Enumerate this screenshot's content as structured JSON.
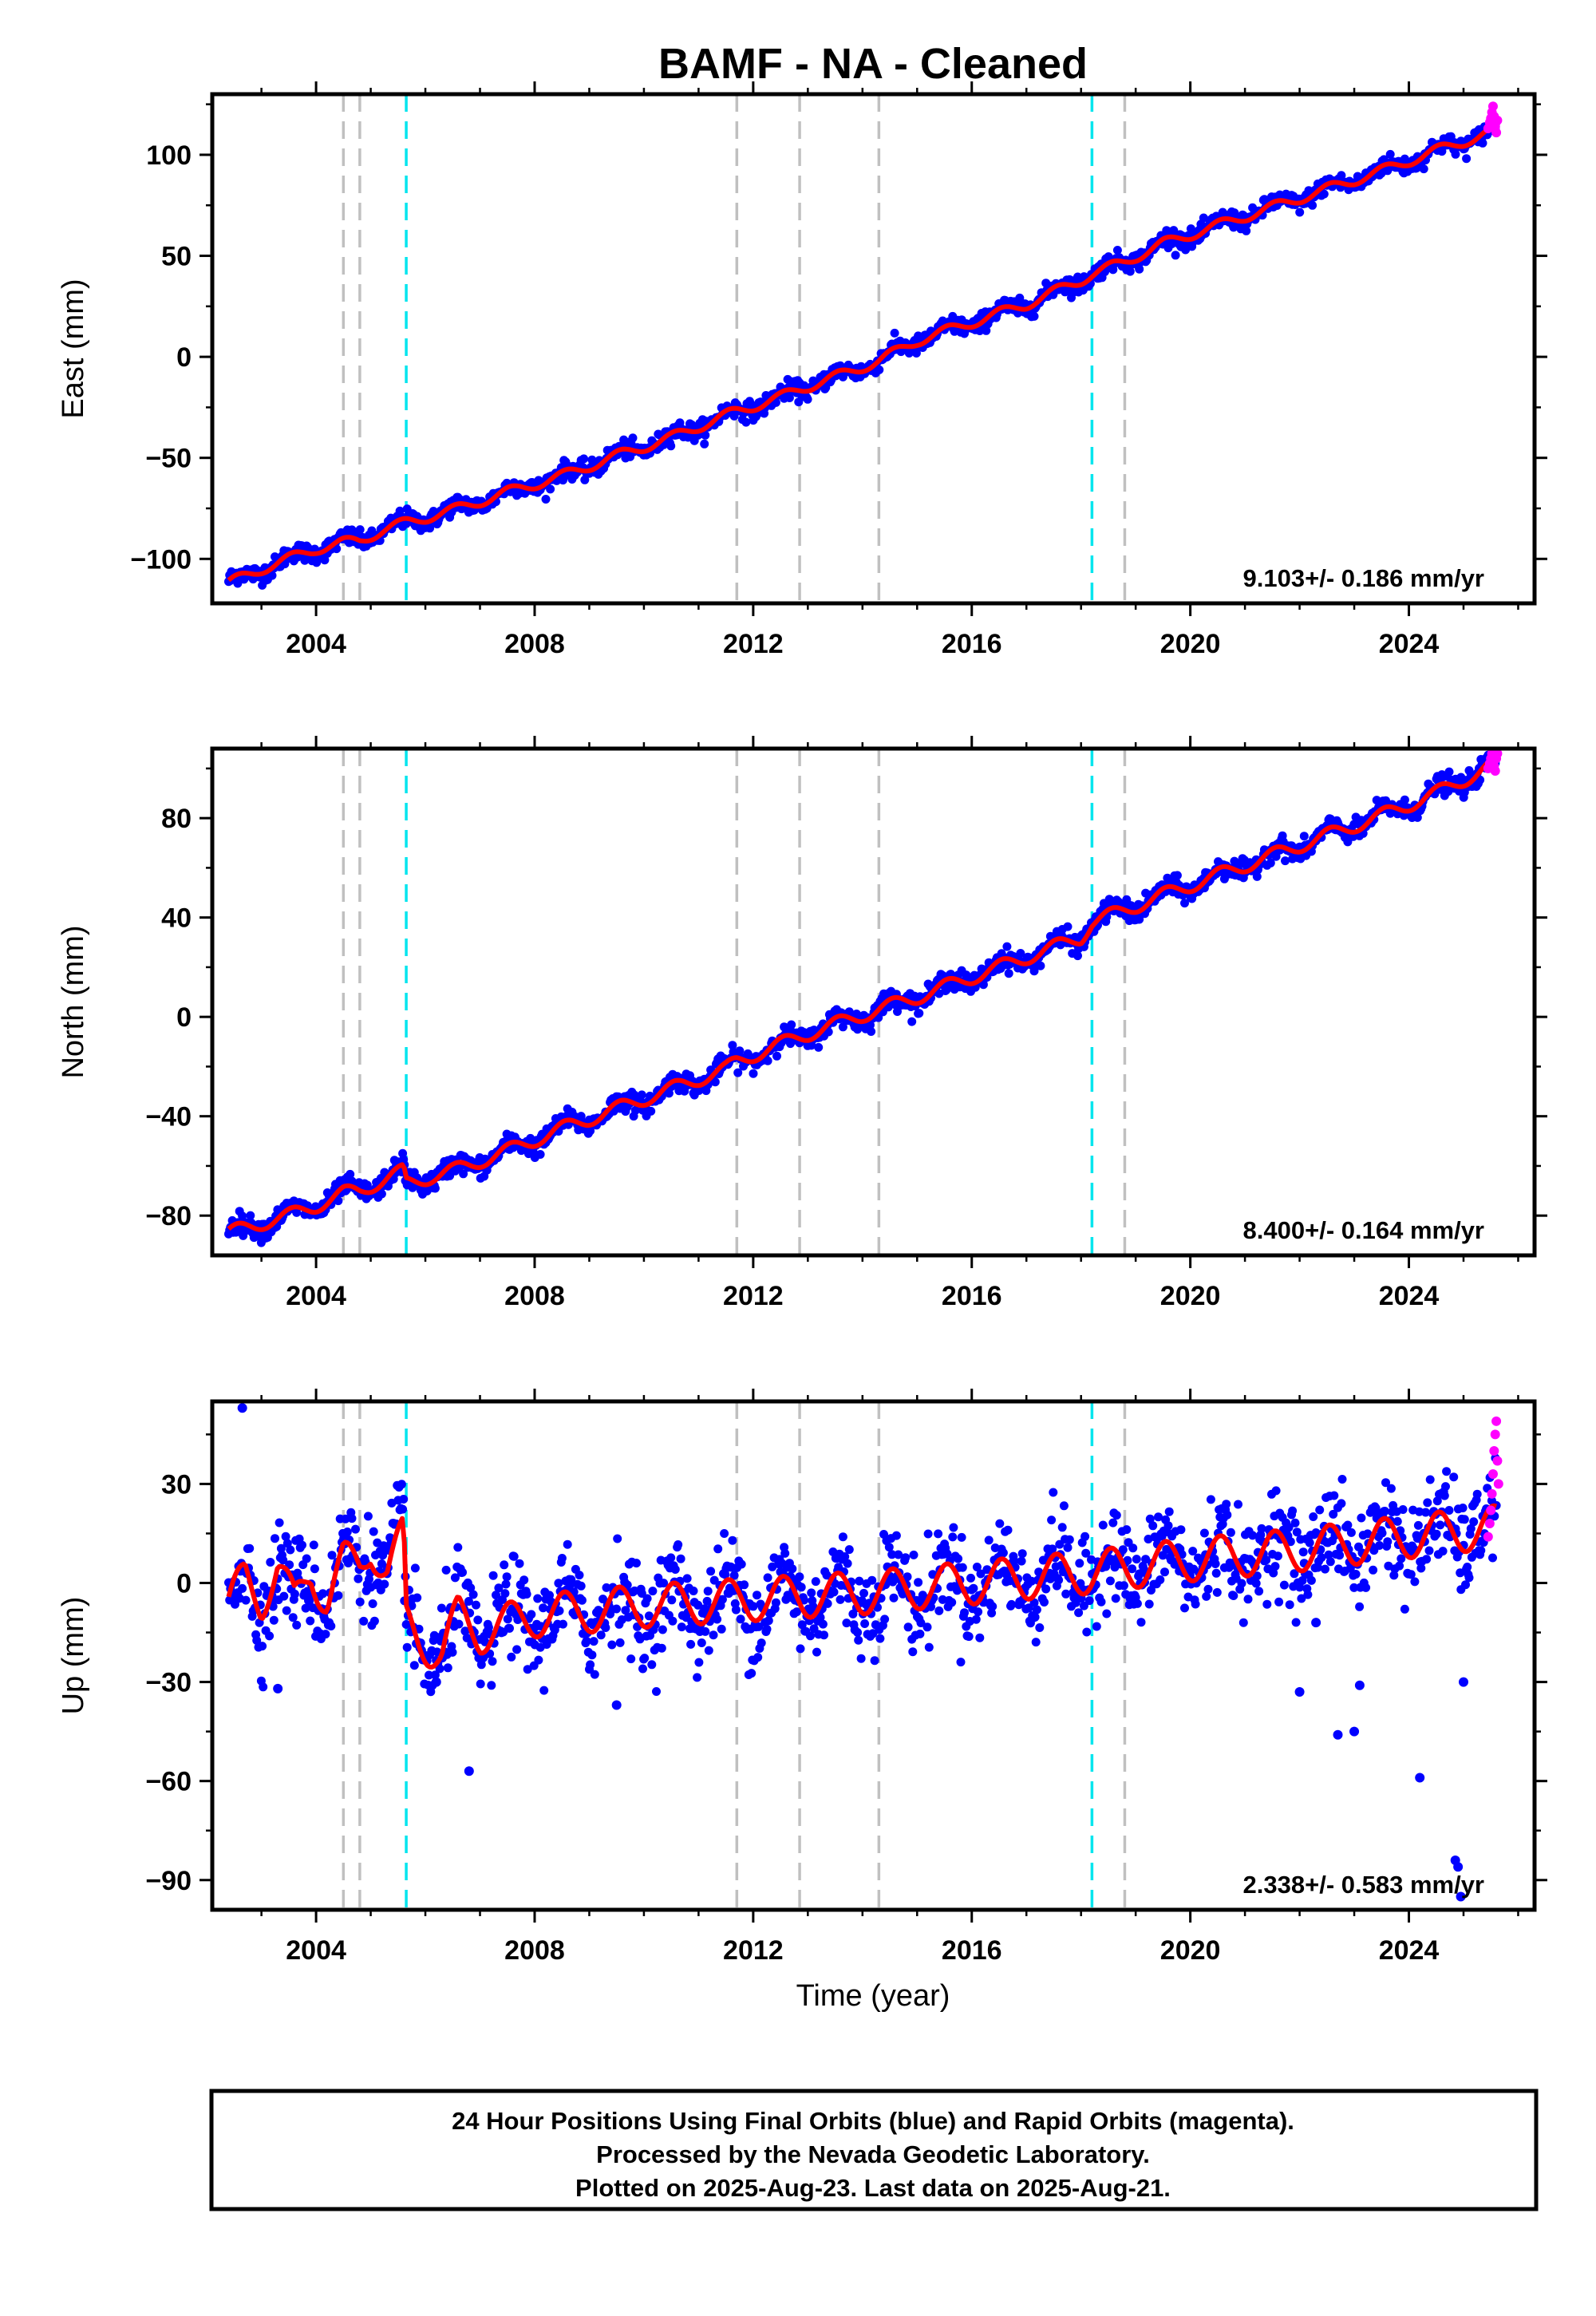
{
  "chart_data": {
    "type": "scatter",
    "title": "BAMF  - NA - Cleaned",
    "xlabel": "Time (year)",
    "xlim": [
      2002.1,
      2026.3
    ],
    "xticks": [
      2004,
      2008,
      2012,
      2016,
      2020,
      2024
    ],
    "gray_event_lines": [
      2004.5,
      2004.8,
      2011.7,
      2012.85,
      2014.3,
      2018.8
    ],
    "cyan_event_lines": [
      2005.65,
      2018.2
    ],
    "colors": {
      "final_orbits": "#0000ff",
      "rapid_orbits": "#ff00ff",
      "model_fit": "#ff0000",
      "gray_lines": "#c0c0c0",
      "cyan_lines": "#00e5ee"
    },
    "panels": [
      {
        "ylabel": "East (mm)",
        "ylim": [
          -122,
          130
        ],
        "yticks": [
          -100,
          -50,
          0,
          50,
          100
        ],
        "rate_label": "9.103+/- 0.186 mm/yr",
        "trend": {
          "x": [
            2002.4,
            2025.6
          ],
          "y": [
            -112,
            112
          ]
        },
        "seasonal_amplitude": 2.5,
        "noise": 2.2,
        "steps": [],
        "outliers": [],
        "fit_path": [
          [
            2002.4,
            -112
          ],
          [
            2003.0,
            -105
          ],
          [
            2003.5,
            -100
          ],
          [
            2004.0,
            -95
          ],
          [
            2004.5,
            -92
          ],
          [
            2004.8,
            -91
          ],
          [
            2005.2,
            -86
          ],
          [
            2005.65,
            -82
          ],
          [
            2006.5,
            -76
          ],
          [
            2007.5,
            -67
          ],
          [
            2008.5,
            -59
          ],
          [
            2009.5,
            -49
          ],
          [
            2010.5,
            -40
          ],
          [
            2011.5,
            -29
          ],
          [
            2011.7,
            -27
          ],
          [
            2012.5,
            -20
          ],
          [
            2012.85,
            -16
          ],
          [
            2013.5,
            -10
          ],
          [
            2014.3,
            -2
          ],
          [
            2015.0,
            8
          ],
          [
            2016.0,
            17
          ],
          [
            2017.0,
            26
          ],
          [
            2018.0,
            38
          ],
          [
            2018.2,
            41
          ],
          [
            2018.8,
            47
          ],
          [
            2019.5,
            56
          ],
          [
            2020.5,
            65
          ],
          [
            2021.5,
            74
          ],
          [
            2022.5,
            83
          ],
          [
            2023.5,
            92
          ],
          [
            2024.5,
            102
          ],
          [
            2025.6,
            112
          ]
        ],
        "rapid_orbit_points": [
          [
            2025.45,
            113
          ],
          [
            2025.48,
            116
          ],
          [
            2025.5,
            118
          ],
          [
            2025.52,
            121
          ],
          [
            2025.54,
            124
          ],
          [
            2025.56,
            119
          ],
          [
            2025.58,
            114
          ],
          [
            2025.6,
            111
          ],
          [
            2025.62,
            117
          ]
        ]
      },
      {
        "ylabel": "North (mm)",
        "ylim": [
          -96,
          108
        ],
        "yticks": [
          -80,
          -40,
          0,
          40,
          80
        ],
        "rate_label": "8.400+/- 0.164 mm/yr",
        "trend": {
          "x": [
            2002.4,
            2025.6
          ],
          "y": [
            -87,
            102
          ]
        },
        "seasonal_amplitude": 2.8,
        "noise": 2.0,
        "steps": [
          {
            "at": 2005.65,
            "size": -5
          }
        ],
        "outliers": [],
        "fit_path": [
          [
            2002.4,
            -87
          ],
          [
            2003.0,
            -83
          ],
          [
            2003.5,
            -80
          ],
          [
            2004.0,
            -76
          ],
          [
            2004.5,
            -71
          ],
          [
            2004.8,
            -70
          ],
          [
            2005.2,
            -66
          ],
          [
            2005.6,
            -62
          ],
          [
            2005.65,
            -67
          ],
          [
            2006.5,
            -62
          ],
          [
            2007.5,
            -54
          ],
          [
            2008.5,
            -45
          ],
          [
            2009.5,
            -37
          ],
          [
            2010.5,
            -29
          ],
          [
            2011.5,
            -21
          ],
          [
            2011.7,
            -18
          ],
          [
            2012.5,
            -11
          ],
          [
            2012.85,
            -8
          ],
          [
            2013.5,
            -3
          ],
          [
            2014.3,
            3
          ],
          [
            2015.0,
            8
          ],
          [
            2016.0,
            16
          ],
          [
            2017.0,
            24
          ],
          [
            2018.0,
            32
          ],
          [
            2018.2,
            38
          ],
          [
            2018.8,
            43
          ],
          [
            2019.5,
            49
          ],
          [
            2020.5,
            57
          ],
          [
            2021.5,
            65
          ],
          [
            2022.5,
            73
          ],
          [
            2023.5,
            81
          ],
          [
            2024.5,
            90
          ],
          [
            2025.6,
            102
          ]
        ],
        "rapid_orbit_points": [
          [
            2025.45,
            100
          ],
          [
            2025.48,
            102
          ],
          [
            2025.5,
            104
          ],
          [
            2025.52,
            106
          ],
          [
            2025.54,
            103
          ],
          [
            2025.56,
            101
          ],
          [
            2025.58,
            99
          ],
          [
            2025.6,
            104
          ],
          [
            2025.62,
            106
          ]
        ]
      },
      {
        "ylabel": "Up (mm)",
        "ylim": [
          -99,
          55
        ],
        "yticks": [
          -90,
          -60,
          -30,
          0,
          30
        ],
        "rate_label": "2.338+/- 0.583 mm/yr",
        "trend": {
          "x": [
            2002.4,
            2025.6
          ],
          "y": [
            -4,
            16
          ]
        },
        "seasonal_amplitude": 6.5,
        "noise": 7.0,
        "steps": [
          {
            "at": 2005.65,
            "size": -20
          }
        ],
        "outliers": [
          [
            2002.65,
            53
          ],
          [
            2003.3,
            -32
          ],
          [
            2006.2,
            -30
          ],
          [
            2006.8,
            -57
          ],
          [
            2009.5,
            -37
          ],
          [
            2022.0,
            -33
          ],
          [
            2022.3,
            -12
          ],
          [
            2022.7,
            -46
          ],
          [
            2023.0,
            -45
          ],
          [
            2023.1,
            -31
          ],
          [
            2024.2,
            -59
          ],
          [
            2024.85,
            -84
          ],
          [
            2024.9,
            -86
          ],
          [
            2024.95,
            -95
          ],
          [
            2025.0,
            -30
          ]
        ],
        "fit_path": [
          [
            2002.4,
            -8
          ],
          [
            2002.7,
            2
          ],
          [
            2003.0,
            -5
          ],
          [
            2003.3,
            5
          ],
          [
            2003.6,
            -7
          ],
          [
            2003.9,
            4
          ],
          [
            2004.2,
            -5
          ],
          [
            2004.5,
            6
          ],
          [
            2004.8,
            5
          ],
          [
            2005.0,
            12
          ],
          [
            2005.3,
            3
          ],
          [
            2005.6,
            14
          ],
          [
            2005.65,
            -12
          ],
          [
            2006.0,
            -18
          ],
          [
            2006.3,
            -22
          ],
          [
            2006.6,
            -10
          ],
          [
            2007.0,
            -15
          ],
          [
            2008.0,
            -10
          ],
          [
            2010.0,
            -7
          ],
          [
            2012.0,
            -5
          ],
          [
            2014.0,
            -3
          ],
          [
            2016.0,
            0
          ],
          [
            2018.0,
            3
          ],
          [
            2020.0,
            7
          ],
          [
            2022.0,
            10
          ],
          [
            2024.0,
            14
          ],
          [
            2025.6,
            17
          ]
        ],
        "rapid_orbit_points": [
          [
            2025.45,
            14
          ],
          [
            2025.48,
            18
          ],
          [
            2025.5,
            22
          ],
          [
            2025.52,
            27
          ],
          [
            2025.54,
            33
          ],
          [
            2025.56,
            40
          ],
          [
            2025.58,
            45
          ],
          [
            2025.6,
            49
          ],
          [
            2025.62,
            37
          ],
          [
            2025.64,
            30
          ]
        ]
      }
    ]
  },
  "footer": {
    "line1": "24 Hour Positions Using Final Orbits (blue) and Rapid Orbits (magenta).",
    "line2": "Processed by the Nevada Geodetic Laboratory.",
    "line3": "Plotted on 2025-Aug-23. Last data on 2025-Aug-21."
  }
}
